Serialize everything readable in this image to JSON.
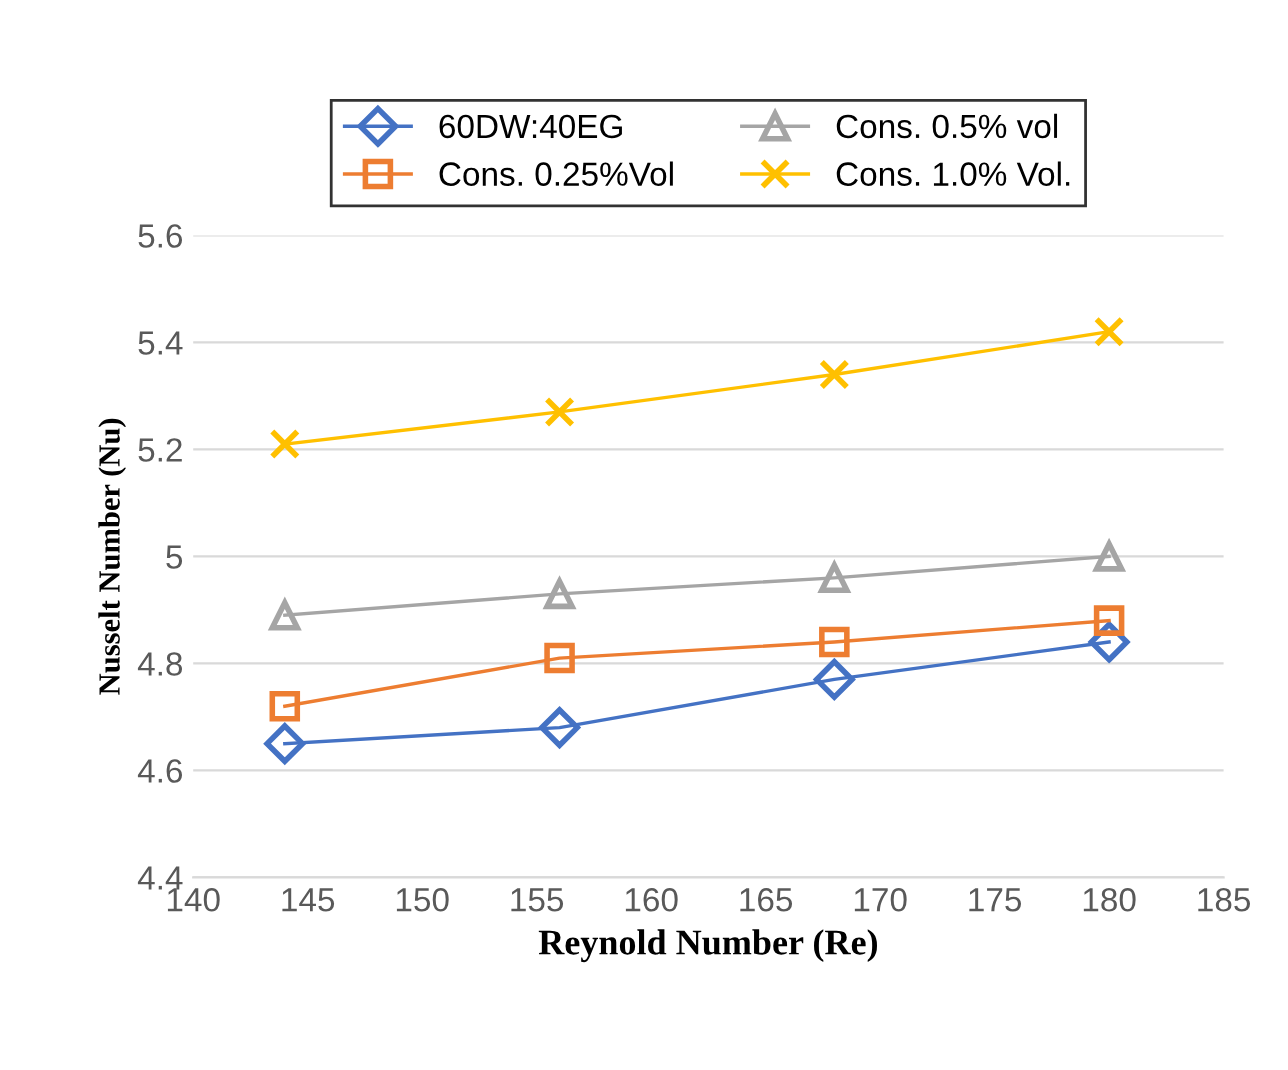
{
  "chart_data": {
    "type": "line",
    "xlabel": "Reynold Number (Re)",
    "ylabel": "Nusselt Number (Nu)",
    "x": [
      144,
      156,
      168,
      180
    ],
    "series": [
      {
        "name": "60DW:40EG",
        "color": "#4472c4",
        "marker": "diamond",
        "values": [
          4.65,
          4.68,
          4.77,
          4.84
        ]
      },
      {
        "name": "Cons. 0.25%Vol",
        "color": "#ed7d31",
        "marker": "square",
        "values": [
          4.72,
          4.81,
          4.84,
          4.88
        ]
      },
      {
        "name": "Cons. 0.5% vol",
        "color": "#a5a5a5",
        "marker": "triangle",
        "values": [
          4.89,
          4.93,
          4.96,
          5.0
        ]
      },
      {
        "name": "Cons. 1.0% Vol.",
        "color": "#ffc000",
        "marker": "cross",
        "values": [
          5.21,
          5.27,
          5.34,
          5.42
        ]
      }
    ],
    "xlim": [
      140,
      185
    ],
    "xticks": [
      140,
      145,
      150,
      155,
      160,
      165,
      170,
      175,
      180,
      185
    ],
    "ylim": [
      4.4,
      5.6
    ],
    "yticks": [
      {
        "value": 4.4,
        "label": "4.4"
      },
      {
        "value": 4.6,
        "label": "4.6"
      },
      {
        "value": 4.8,
        "label": "4.8"
      },
      {
        "value": 5.0,
        "label": "5"
      },
      {
        "value": 5.2,
        "label": "5.2"
      },
      {
        "value": 5.4,
        "label": "5.4"
      },
      {
        "value": 5.6,
        "label": "5.6"
      }
    ],
    "grid": "y",
    "legend": "top"
  }
}
